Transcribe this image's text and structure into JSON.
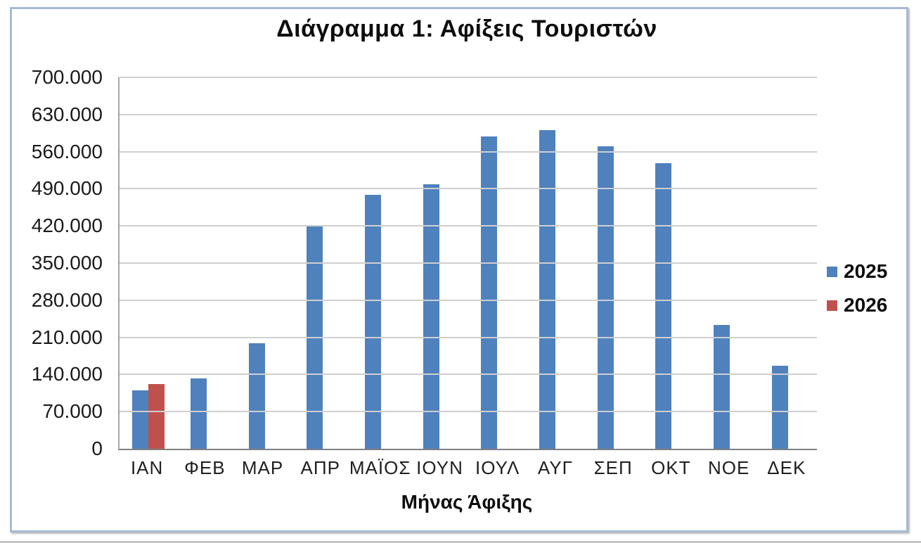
{
  "chart_data": {
    "type": "bar",
    "title": "Διάγραμμα 1: Αφίξεις Τουριστών",
    "xlabel": "Μήνας Άφιξης",
    "ylabel": "",
    "categories": [
      "ΙΑΝ",
      "ΦΕΒ",
      "ΜΑΡ",
      "ΑΠΡ",
      "ΜΑΪΟΣ",
      "ΙΟΥΝ",
      "ΙΟΥΛ",
      "ΑΥΓ",
      "ΣΕΠ",
      "ΟΚΤ",
      "ΝΟΕ",
      "ΔΕΚ"
    ],
    "series": [
      {
        "name": "2025",
        "color": "#4f81bd",
        "values": [
          110000,
          132000,
          199000,
          420000,
          478000,
          498000,
          589000,
          601000,
          570000,
          538000,
          233000,
          157000
        ]
      },
      {
        "name": "2026",
        "color": "#c0504d",
        "values": [
          122000,
          null,
          null,
          null,
          null,
          null,
          null,
          null,
          null,
          null,
          null,
          null
        ]
      }
    ],
    "ylim": [
      0,
      700000
    ],
    "ytick_step": 70000,
    "ytick_labels": [
      "0",
      "70.000",
      "140.000",
      "210.000",
      "280.000",
      "350.000",
      "420.000",
      "490.000",
      "560.000",
      "630.000",
      "700.000"
    ],
    "grid": true,
    "legend_position": "right",
    "frame_border_color": "#a7bad4",
    "gridline_color": "#cfcfcf"
  }
}
